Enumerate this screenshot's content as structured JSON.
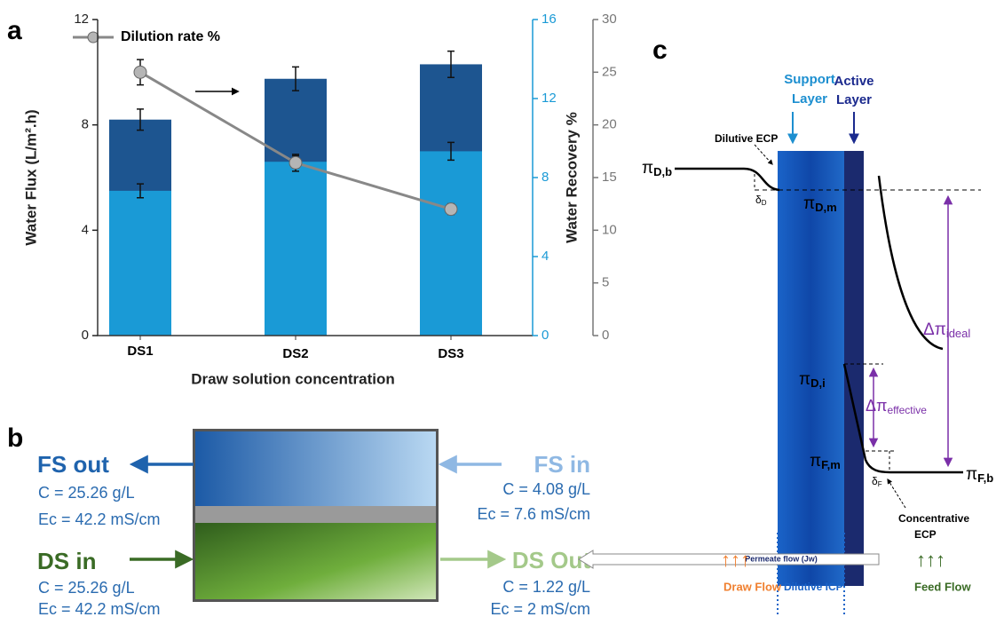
{
  "panel_labels": {
    "a": "a",
    "b": "b",
    "c": "c"
  },
  "chart_data": {
    "type": "bar",
    "categories": [
      "DS1",
      "DS2",
      "DS3"
    ],
    "xlabel": "Draw solution concentration",
    "ylabel": "Water Flux (L/m².h)",
    "y2label": "Water Recovery %",
    "ylim": [
      0,
      12
    ],
    "yticks": [
      0,
      4,
      8,
      12
    ],
    "y2lim": [
      0,
      16
    ],
    "y2ticks": [
      0,
      4,
      8,
      12,
      16
    ],
    "y3lim": [
      0,
      30
    ],
    "y3ticks": [
      0,
      5,
      10,
      15,
      20,
      25,
      30
    ],
    "series": [
      {
        "type": "bar",
        "color": "#1d5590",
        "values": [
          8.2,
          9.75,
          10.3
        ],
        "errors": [
          0.4,
          0.45,
          0.5
        ]
      },
      {
        "type": "bar",
        "color": "#1a9ad6",
        "axis": "y2",
        "values": [
          7.33,
          8.8,
          9.33
        ],
        "errors": [
          0.35,
          0.3,
          0.45
        ]
      },
      {
        "type": "line",
        "name": "Dilution rate %",
        "color": "#888888",
        "axis": "y3",
        "values": [
          25,
          16.4,
          12
        ],
        "errors": [
          1.2,
          0.8,
          0.5
        ]
      }
    ]
  },
  "membrane_module": {
    "fs_out": {
      "label": "FS out",
      "c": "C = 25.26 g/L",
      "ec": "Ec = 42.2 mS/cm"
    },
    "fs_in": {
      "label": "FS in",
      "c": "C = 4.08 g/L",
      "ec": "Ec = 7.6 mS/cm"
    },
    "ds_in": {
      "label": "DS in",
      "c": "C = 25.26 g/L",
      "ec": "Ec = 42.2 mS/cm"
    },
    "ds_out": {
      "label": "DS Out",
      "c": "C = 1.22 g/L",
      "ec": "Ec = 2 mS/cm"
    }
  },
  "osmosis_diagram": {
    "support_layer": [
      "Support",
      "Layer"
    ],
    "active_layer": [
      "Active",
      "Layer"
    ],
    "dilutive_ecp": "Dilutive ECP",
    "concentrative_ecp": [
      "Concentrative",
      "ECP"
    ],
    "pi_d_b": {
      "symbol": "π",
      "sub": "D,b"
    },
    "pi_d_m": {
      "symbol": "π",
      "sub": "D,m"
    },
    "pi_d_i": {
      "symbol": "π",
      "sub": "D,i"
    },
    "pi_f_m": {
      "symbol": "π",
      "sub": "F,m"
    },
    "pi_f_b": {
      "symbol": "π",
      "sub": "F,b"
    },
    "delta_d": {
      "symbol": "δ",
      "sub": "D"
    },
    "delta_f": {
      "symbol": "δ",
      "sub": "F"
    },
    "dpi_ideal": {
      "symbol": "Δπ",
      "sub": "ideal"
    },
    "dpi_effective": {
      "symbol": "Δπ",
      "sub": "effective"
    },
    "permeate_flow": "Permeate flow (Jw)",
    "draw_arrows": "↑↑↑",
    "feed_arrows": "↑↑↑",
    "draw_flow": "Draw Flow",
    "dilutive_icp": "Dilutive ICP",
    "feed_flow": "Feed Flow"
  }
}
